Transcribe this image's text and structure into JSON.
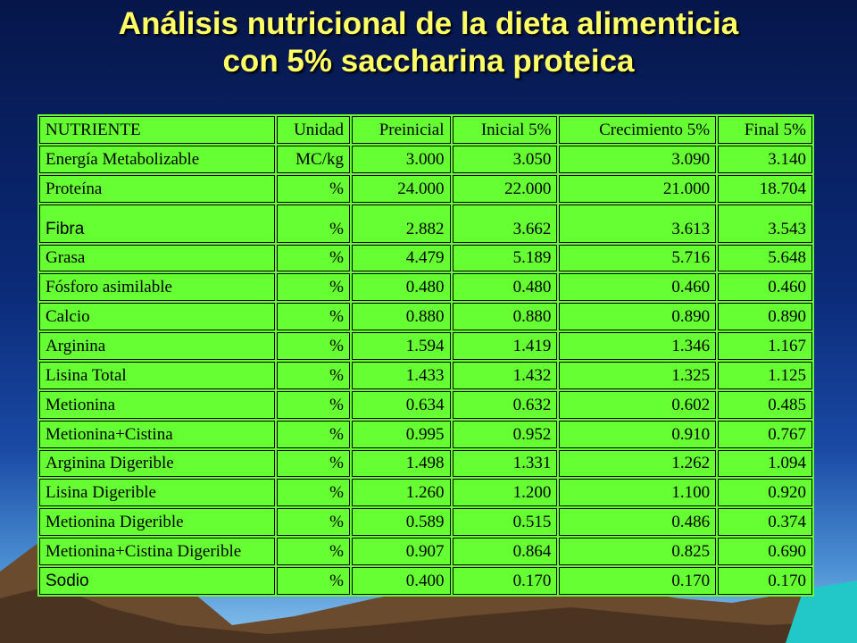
{
  "title": {
    "line1": "Análisis  nutricional de la dieta alimenticia",
    "line2": "con 5%  saccharina proteica"
  },
  "table": {
    "headers": [
      "NUTRIENTE",
      "Unidad",
      "Preinicial",
      "Inicial 5%",
      "Crecimiento 5%",
      "Final 5%"
    ],
    "rows": [
      {
        "name": "Energía Metabolizable",
        "unit": "MC/kg",
        "values": [
          "3.000",
          "3.050",
          "3.090",
          "3.140"
        ]
      },
      {
        "name": "Proteína",
        "unit": "%",
        "values": [
          "24.000",
          "22.000",
          "21.000",
          "18.704"
        ]
      },
      {
        "name": "Fibra",
        "unit": "%",
        "values": [
          "2.882",
          "3.662",
          "3.613",
          "3.543"
        ]
      },
      {
        "name": "Grasa",
        "unit": "%",
        "values": [
          "4.479",
          "5.189",
          "5.716",
          "5.648"
        ]
      },
      {
        "name": "Fósforo asimilable",
        "unit": "%",
        "values": [
          "0.480",
          "0.480",
          "0.460",
          "0.460"
        ]
      },
      {
        "name": "Calcio",
        "unit": "%",
        "values": [
          "0.880",
          "0.880",
          "0.890",
          "0.890"
        ]
      },
      {
        "name": "Arginina",
        "unit": "%",
        "values": [
          "1.594",
          "1.419",
          "1.346",
          "1.167"
        ]
      },
      {
        "name": "Lisina Total",
        "unit": "%",
        "values": [
          "1.433",
          "1.432",
          "1.325",
          "1.125"
        ]
      },
      {
        "name": "Metionina",
        "unit": "%",
        "values": [
          "0.634",
          "0.632",
          "0.602",
          "0.485"
        ]
      },
      {
        "name": "Metionina+Cistina",
        "unit": "%",
        "values": [
          "0.995",
          "0.952",
          "0.910",
          "0.767"
        ]
      },
      {
        "name": "Arginina Digerible",
        "unit": "%",
        "values": [
          "1.498",
          "1.331",
          "1.262",
          "1.094"
        ]
      },
      {
        "name": "Lisina Digerible",
        "unit": "%",
        "values": [
          "1.260",
          "1.200",
          "1.100",
          "0.920"
        ]
      },
      {
        "name": "Metionina Digerible",
        "unit": "%",
        "values": [
          "0.589",
          "0.515",
          "0.486",
          "0.374"
        ]
      },
      {
        "name": "Metionina+Cistina Digerible",
        "unit": "%",
        "values": [
          "0.907",
          "0.864",
          "0.825",
          "0.690"
        ]
      },
      {
        "name": "Sodio",
        "unit": "%",
        "values": [
          "0.400",
          "0.170",
          "0.170",
          "0.170"
        ]
      }
    ]
  }
}
